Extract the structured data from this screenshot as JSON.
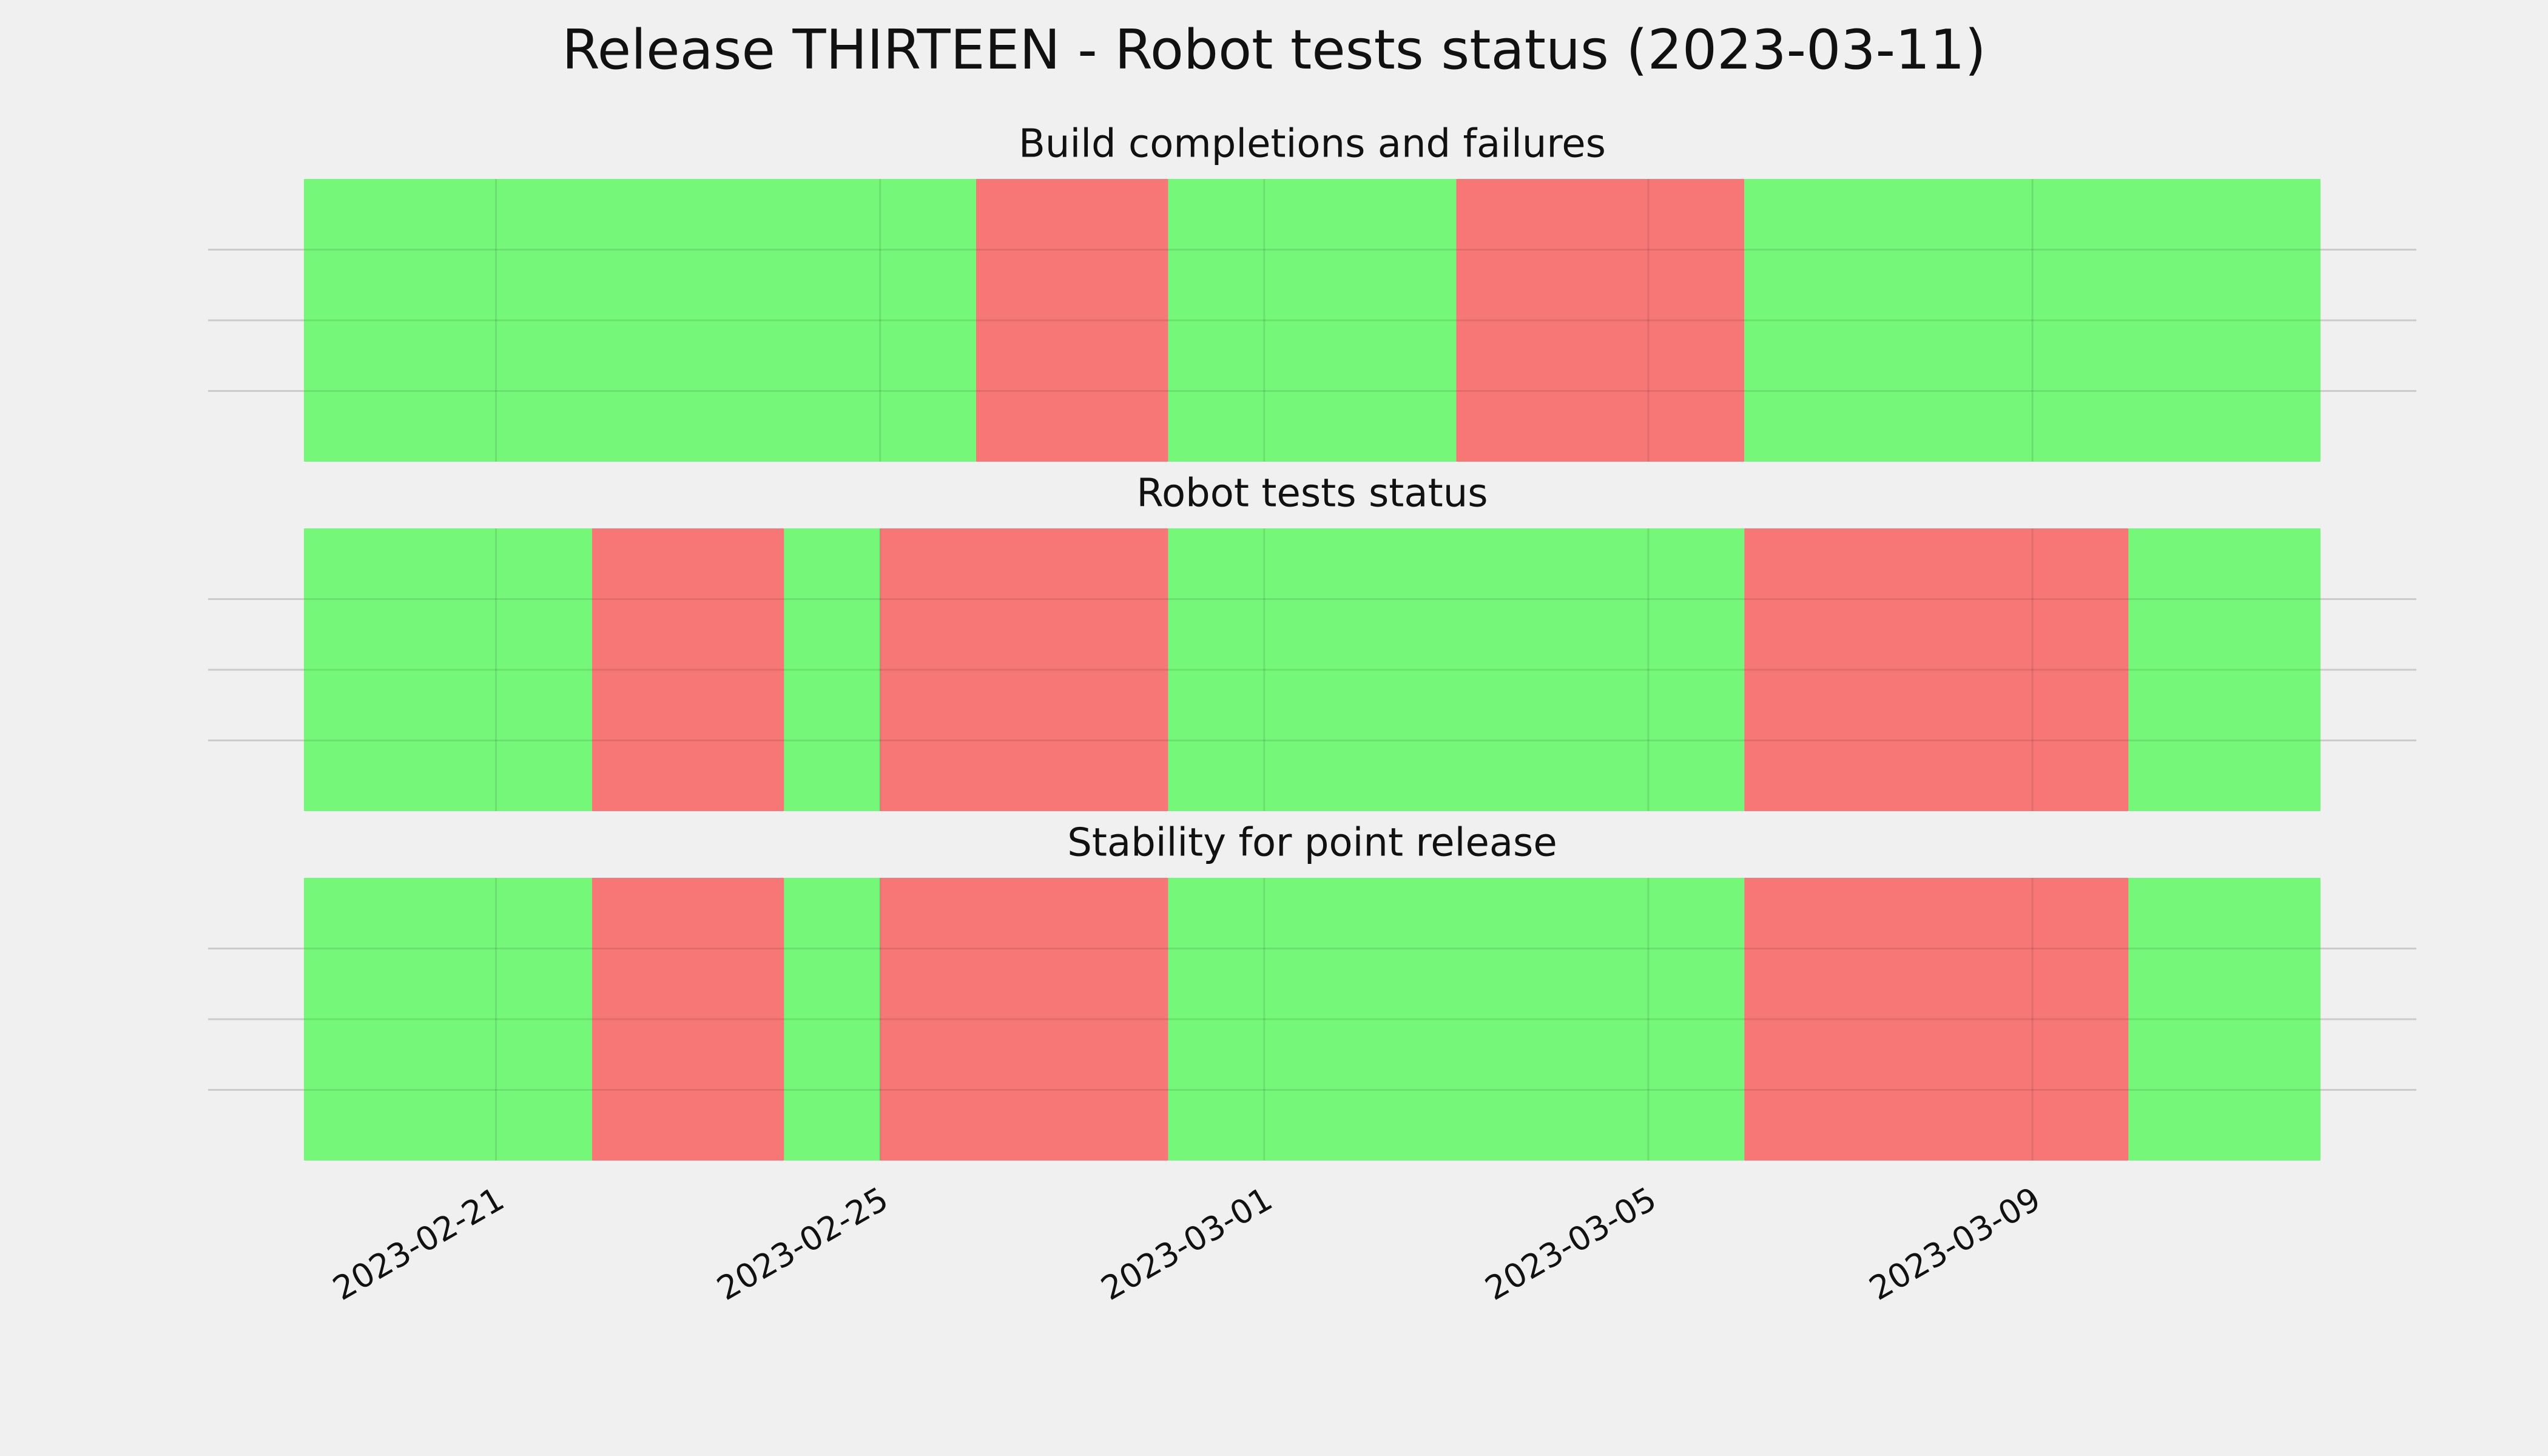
{
  "title": "Release THIRTEEN - Robot tests status (2023-03-11)",
  "chart_data": [
    {
      "type": "span",
      "title": "Build completions and failures",
      "xlim": [
        "2023-02-19",
        "2023-03-12"
      ],
      "ylim": [
        0,
        1
      ],
      "yticks": [
        0.25,
        0.5,
        0.75
      ],
      "xticks": [
        "2023-02-21",
        "2023-02-25",
        "2023-03-01",
        "2023-03-05",
        "2023-03-09"
      ],
      "grid": true,
      "segments": [
        {
          "start": "2023-02-19",
          "end": "2023-02-26",
          "color": "#75f77a"
        },
        {
          "start": "2023-02-26",
          "end": "2023-02-28",
          "color": "#f77777"
        },
        {
          "start": "2023-02-28",
          "end": "2023-03-03",
          "color": "#75f77a"
        },
        {
          "start": "2023-03-03",
          "end": "2023-03-06",
          "color": "#f77777"
        },
        {
          "start": "2023-03-06",
          "end": "2023-03-12",
          "color": "#75f77a"
        }
      ]
    },
    {
      "type": "span",
      "title": "Robot tests status",
      "xlim": [
        "2023-02-19",
        "2023-03-12"
      ],
      "ylim": [
        0,
        1
      ],
      "yticks": [
        0.25,
        0.5,
        0.75
      ],
      "xticks": [
        "2023-02-21",
        "2023-02-25",
        "2023-03-01",
        "2023-03-05",
        "2023-03-09"
      ],
      "grid": true,
      "segments": [
        {
          "start": "2023-02-19",
          "end": "2023-02-22",
          "color": "#75f77a"
        },
        {
          "start": "2023-02-22",
          "end": "2023-02-24",
          "color": "#f77777"
        },
        {
          "start": "2023-02-24",
          "end": "2023-02-25",
          "color": "#75f77a"
        },
        {
          "start": "2023-02-25",
          "end": "2023-02-28",
          "color": "#f77777"
        },
        {
          "start": "2023-02-28",
          "end": "2023-03-06",
          "color": "#75f77a"
        },
        {
          "start": "2023-03-06",
          "end": "2023-03-10",
          "color": "#f77777"
        },
        {
          "start": "2023-03-10",
          "end": "2023-03-12",
          "color": "#75f77a"
        }
      ]
    },
    {
      "type": "span",
      "title": "Stability for point release",
      "xlim": [
        "2023-02-19",
        "2023-03-12"
      ],
      "ylim": [
        0,
        1
      ],
      "yticks": [
        0.25,
        0.5,
        0.75
      ],
      "xticks": [
        "2023-02-21",
        "2023-02-25",
        "2023-03-01",
        "2023-03-05",
        "2023-03-09"
      ],
      "grid": true,
      "segments": [
        {
          "start": "2023-02-19",
          "end": "2023-02-22",
          "color": "#75f77a"
        },
        {
          "start": "2023-02-22",
          "end": "2023-02-24",
          "color": "#f77777"
        },
        {
          "start": "2023-02-24",
          "end": "2023-02-25",
          "color": "#75f77a"
        },
        {
          "start": "2023-02-25",
          "end": "2023-02-28",
          "color": "#f77777"
        },
        {
          "start": "2023-02-28",
          "end": "2023-03-06",
          "color": "#75f77a"
        },
        {
          "start": "2023-03-06",
          "end": "2023-03-10",
          "color": "#f77777"
        },
        {
          "start": "2023-03-10",
          "end": "2023-03-12",
          "color": "#75f77a"
        }
      ]
    }
  ]
}
